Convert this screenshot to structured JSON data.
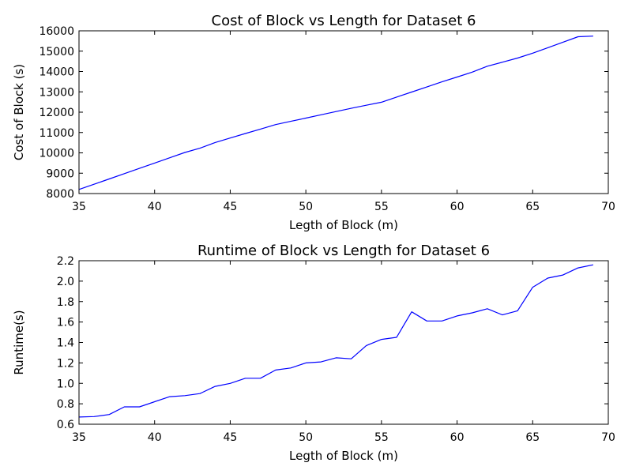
{
  "chart_data": [
    {
      "type": "line",
      "title": "Cost of Block vs Length for Dataset 6",
      "xlabel": "Legth of Block (m)",
      "ylabel": "Cost of Block (s)",
      "xlim": [
        35,
        70
      ],
      "ylim": [
        8000,
        16000
      ],
      "xticks": [
        35,
        40,
        45,
        50,
        55,
        60,
        65,
        70
      ],
      "yticks": [
        8000,
        9000,
        10000,
        11000,
        12000,
        13000,
        14000,
        15000,
        16000
      ],
      "grid": false,
      "series_color": "#0000ff",
      "x": [
        35,
        36,
        37,
        38,
        39,
        40,
        41,
        42,
        43,
        44,
        45,
        46,
        47,
        48,
        49,
        50,
        51,
        52,
        53,
        54,
        55,
        56,
        57,
        58,
        59,
        60,
        61,
        62,
        63,
        64,
        65,
        66,
        67,
        68,
        69
      ],
      "y": [
        8200,
        8460,
        8720,
        8980,
        9240,
        9500,
        9760,
        10020,
        10230,
        10510,
        10730,
        10950,
        11170,
        11390,
        11550,
        11710,
        11870,
        12030,
        12190,
        12340,
        12490,
        12740,
        12990,
        13240,
        13490,
        13730,
        13970,
        14260,
        14460,
        14660,
        14900,
        15170,
        15440,
        15710,
        15740
      ]
    },
    {
      "type": "line",
      "title": "Runtime of Block vs Length for Dataset 6",
      "xlabel": "Legth of Block (m)",
      "ylabel": "Runtime(s)",
      "xlim": [
        35,
        70
      ],
      "ylim": [
        0.6,
        2.2
      ],
      "xticks": [
        35,
        40,
        45,
        50,
        55,
        60,
        65,
        70
      ],
      "yticks": [
        "0.6",
        "0.8",
        "1.0",
        "1.2",
        "1.4",
        "1.6",
        "1.8",
        "2.0",
        "2.2"
      ],
      "grid": false,
      "series_color": "#0000ff",
      "x": [
        35,
        36,
        37,
        38,
        39,
        40,
        41,
        42,
        43,
        44,
        45,
        46,
        47,
        48,
        49,
        50,
        51,
        52,
        53,
        54,
        55,
        56,
        57,
        58,
        59,
        60,
        61,
        62,
        63,
        64,
        65,
        66,
        67,
        68,
        69
      ],
      "y": [
        0.67,
        0.675,
        0.695,
        0.77,
        0.77,
        0.82,
        0.87,
        0.88,
        0.9,
        0.97,
        1.0,
        1.05,
        1.05,
        1.13,
        1.15,
        1.2,
        1.21,
        1.25,
        1.24,
        1.37,
        1.43,
        1.45,
        1.7,
        1.61,
        1.61,
        1.66,
        1.69,
        1.73,
        1.67,
        1.71,
        1.94,
        2.03,
        2.06,
        2.13,
        2.16
      ]
    }
  ]
}
